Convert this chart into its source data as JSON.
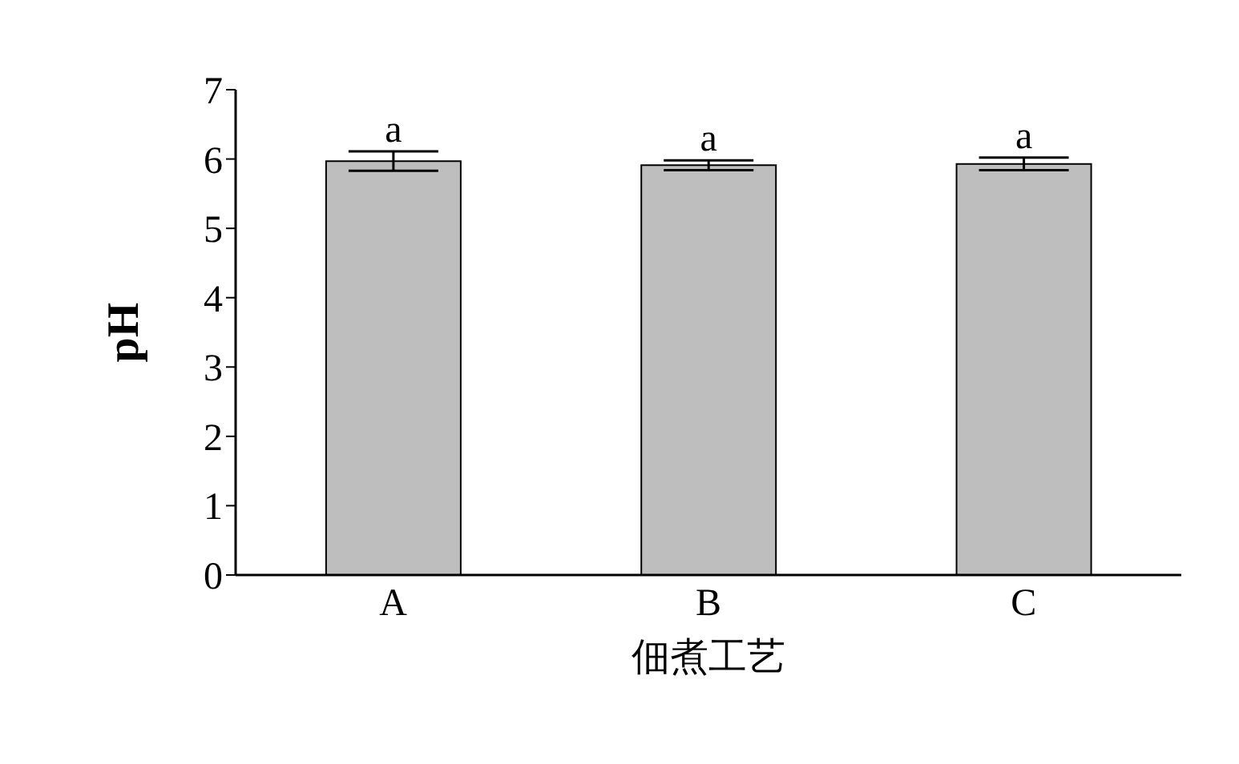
{
  "chart_data": {
    "type": "bar",
    "xlabel": "佃煮工艺",
    "ylabel": "pH",
    "categories": [
      "A",
      "B",
      "C"
    ],
    "values": [
      5.97,
      5.91,
      5.93
    ],
    "errors": [
      0.14,
      0.07,
      0.09
    ],
    "value_labels": [
      "a",
      "a",
      "a"
    ],
    "color": "#bebebe",
    "ylim": [
      0,
      7
    ],
    "yticks": [
      0,
      1,
      2,
      3,
      4,
      5,
      6,
      7
    ],
    "grid": false,
    "legend": false
  }
}
